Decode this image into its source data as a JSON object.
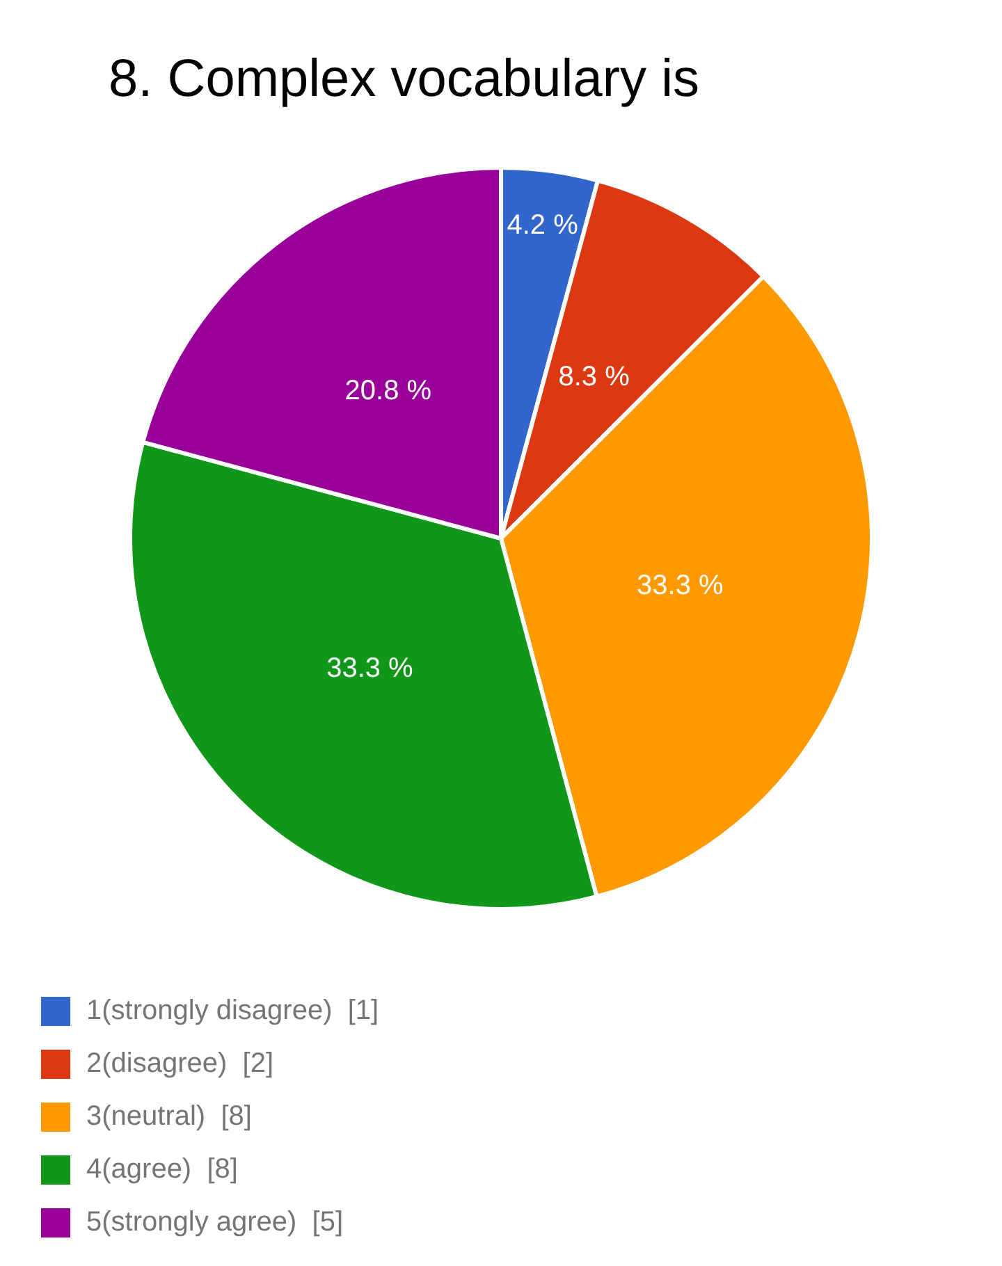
{
  "chart_data": {
    "type": "pie",
    "title": "8. Complex vocabulary is",
    "categories": [
      "1(strongly disagree)  [1]",
      "2(disagree)  [2]",
      "3(neutral)  [8]",
      "4(agree)  [8]",
      "5(strongly agree)  [5]"
    ],
    "values": [
      4.2,
      8.3,
      33.3,
      33.3,
      20.8
    ],
    "colors": [
      "#3366cc",
      "#dc3912",
      "#ff9900",
      "#109618",
      "#990099"
    ],
    "value_labels": [
      "4.2 %",
      "8.3 %",
      "33.3 %",
      "33.3 %",
      "20.8 %"
    ],
    "legend": "bottom left"
  }
}
